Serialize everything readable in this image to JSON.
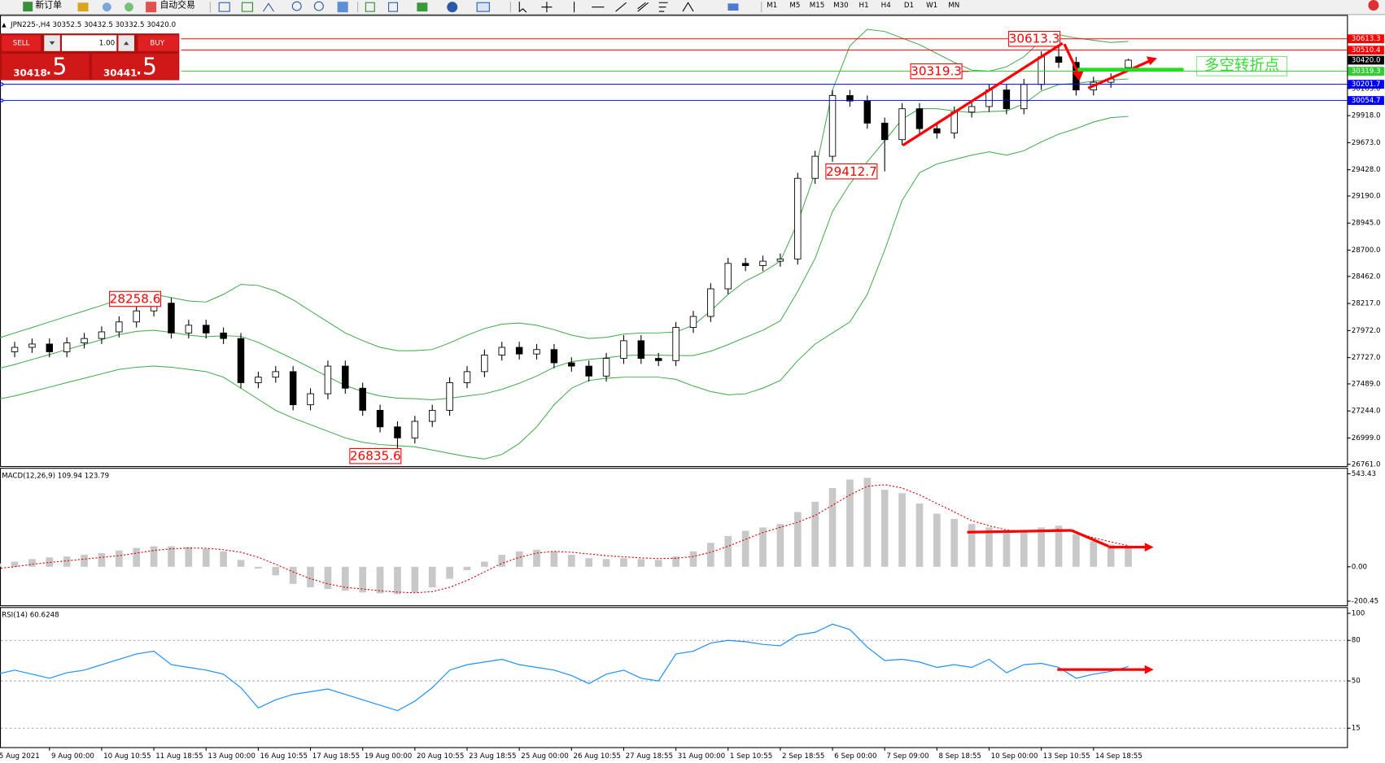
{
  "toolbar": {
    "new_order": "新订单",
    "auto_trading": "自动交易",
    "timeframes": [
      "M1",
      "M5",
      "M15",
      "M30",
      "H1",
      "H4",
      "D1",
      "W1",
      "MN"
    ]
  },
  "trade_panel": {
    "sell": "SELL",
    "buy": "BUY",
    "lots": "1.00",
    "bid_main": "30418",
    "bid_frac": ".5",
    "ask_main": "30441",
    "ask_frac": ".5"
  },
  "chart_data": [
    {
      "type": "candlestick",
      "title": "JPN225-,H4 30352.5 30432.5 30332.5 30420.0",
      "categories": [
        "5 Aug 2021",
        null,
        null,
        "9 Aug 00:00",
        null,
        null,
        "10 Aug 10:55",
        null,
        null,
        "11 Aug 18:55",
        null,
        null,
        "13 Aug 00:00",
        null,
        null,
        "16 Aug 10:55",
        null,
        null,
        "17 Aug 18:55",
        null,
        null,
        "19 Aug 00:00",
        null,
        null,
        "20 Aug 10:55",
        null,
        null,
        "23 Aug 18:55",
        null,
        null,
        "25 Aug 00:00",
        null,
        null,
        "26 Aug 10:55",
        null,
        null,
        "27 Aug 18:55",
        null,
        null,
        "31 Aug 00:00",
        null,
        null,
        "1 Sep 10:55",
        null,
        null,
        "2 Sep 18:55",
        null,
        null,
        "6 Sep 00:00",
        null,
        null,
        "7 Sep 09:00",
        null,
        null,
        "8 Sep 18:55",
        null,
        null,
        "10 Sep 00:00",
        null,
        null,
        "13 Sep 10:55",
        null,
        null,
        "14 Sep 18:55",
        null,
        null
      ],
      "open": [
        27750,
        27780,
        27820,
        27850,
        27780,
        27860,
        27900,
        27960,
        28050,
        28150,
        28220,
        27950,
        28020,
        27950,
        27900,
        27500,
        27550,
        27600,
        27300,
        27400,
        27650,
        27450,
        27250,
        27100,
        27000,
        27150,
        27250,
        27500,
        27600,
        27750,
        27820,
        27760,
        27800,
        27680,
        27650,
        27560,
        27720,
        27880,
        27720,
        27700,
        28000,
        28100,
        28350,
        28580,
        28560,
        28600,
        28620,
        29350,
        29550,
        30100,
        30050,
        29850,
        29700,
        29980,
        29800,
        29760,
        29950,
        30000,
        30150,
        29980,
        30200,
        30450,
        30400,
        30150,
        30220,
        30352.5
      ],
      "high": [
        27830,
        27870,
        27900,
        27900,
        27910,
        27950,
        28010,
        28100,
        28200,
        28258.6,
        28270,
        28070,
        28070,
        28000,
        27950,
        27600,
        27650,
        27650,
        27450,
        27700,
        27700,
        27500,
        27300,
        27150,
        27200,
        27300,
        27550,
        27650,
        27800,
        27870,
        27870,
        27850,
        27850,
        27730,
        27700,
        27770,
        27930,
        27930,
        27770,
        28050,
        28150,
        28400,
        28630,
        28630,
        28650,
        28670,
        29400,
        29600,
        30150,
        30150,
        30100,
        29900,
        30030,
        30030,
        29850,
        30000,
        30050,
        30200,
        30200,
        30250,
        30500,
        30613.3,
        30450,
        30270,
        30300,
        30432.5
      ],
      "low": [
        27700,
        27730,
        27770,
        27730,
        27730,
        27810,
        27850,
        27910,
        28000,
        28100,
        27900,
        27900,
        27900,
        27850,
        27450,
        27450,
        27500,
        27250,
        27250,
        27350,
        27400,
        27200,
        27050,
        26835.6,
        26950,
        27100,
        27200,
        27450,
        27550,
        27700,
        27710,
        27710,
        27630,
        27600,
        27510,
        27510,
        27670,
        27670,
        27650,
        27650,
        27950,
        28050,
        28300,
        28510,
        28510,
        28550,
        28570,
        29300,
        29500,
        30000,
        29800,
        29412.7,
        29650,
        29750,
        29710,
        29710,
        29900,
        29950,
        29930,
        29930,
        30150,
        30350,
        30100,
        30100,
        30170,
        30332.5
      ],
      "close": [
        27780,
        27820,
        27850,
        27780,
        27860,
        27900,
        27960,
        28050,
        28150,
        28220,
        27950,
        28020,
        27950,
        27900,
        27500,
        27550,
        27600,
        27300,
        27400,
        27650,
        27450,
        27250,
        27100,
        27000,
        27150,
        27250,
        27500,
        27600,
        27750,
        27820,
        27760,
        27800,
        27680,
        27650,
        27560,
        27720,
        27880,
        27720,
        27700,
        28000,
        28100,
        28350,
        28580,
        28560,
        28600,
        28620,
        29350,
        29550,
        30100,
        30050,
        29850,
        29700,
        29980,
        29800,
        29760,
        29950,
        30000,
        30150,
        29980,
        30200,
        30450,
        30400,
        30150,
        30220,
        30250,
        30420
      ],
      "up_color": "#ffffff",
      "down_color": "#000000",
      "wick_color": "#000000",
      "bands": {
        "color": "#3aa845",
        "upper": [
          27900,
          27950,
          28000,
          28050,
          28100,
          28150,
          28200,
          28250,
          28290,
          28300,
          28270,
          28240,
          28230,
          28300,
          28390,
          28380,
          28330,
          28250,
          28150,
          28050,
          27950,
          27880,
          27820,
          27790,
          27790,
          27800,
          27860,
          27930,
          27990,
          28030,
          28040,
          28020,
          27980,
          27930,
          27900,
          27910,
          27940,
          27950,
          27950,
          27960,
          28020,
          28150,
          28300,
          28420,
          28500,
          28600,
          28950,
          29400,
          30150,
          30550,
          30700,
          30680,
          30620,
          30560,
          30480,
          30400,
          30330,
          30320,
          30360,
          30450,
          30600,
          30650,
          30620,
          30600,
          30580,
          30590
        ],
        "middle": [
          27625,
          27665,
          27710,
          27755,
          27800,
          27845,
          27890,
          27935,
          27965,
          27975,
          27955,
          27930,
          27915,
          27925,
          27920,
          27865,
          27790,
          27715,
          27635,
          27555,
          27475,
          27420,
          27380,
          27360,
          27355,
          27345,
          27360,
          27380,
          27400,
          27440,
          27495,
          27560,
          27640,
          27690,
          27710,
          27725,
          27745,
          27750,
          27750,
          27745,
          27745,
          27785,
          27845,
          27910,
          27975,
          28060,
          28325,
          28625,
          29050,
          29300,
          29500,
          29690,
          29885,
          29980,
          29980,
          29960,
          29945,
          29955,
          29960,
          30025,
          30140,
          30200,
          30210,
          30230,
          30240,
          30250
        ],
        "lower": [
          27350,
          27380,
          27420,
          27460,
          27500,
          27540,
          27580,
          27620,
          27640,
          27650,
          27640,
          27620,
          27600,
          27550,
          27450,
          27350,
          27250,
          27180,
          27120,
          27060,
          27000,
          26960,
          26940,
          26930,
          26920,
          26890,
          26860,
          26830,
          26810,
          26850,
          26950,
          27100,
          27300,
          27450,
          27520,
          27540,
          27550,
          27550,
          27550,
          27530,
          27470,
          27420,
          27390,
          27400,
          27450,
          27520,
          27700,
          27850,
          27950,
          28050,
          28300,
          28700,
          29150,
          29400,
          29480,
          29520,
          29560,
          29590,
          29560,
          29600,
          29680,
          29750,
          29800,
          29860,
          29900,
          29910
        ]
      },
      "ylim": [
        26745,
        30821
      ],
      "yticks": [
        {
          "value": 26761,
          "label": "26761.0"
        },
        {
          "value": 26999,
          "label": "26999.0"
        },
        {
          "value": 27244,
          "label": "27244.0"
        },
        {
          "value": 27489,
          "label": "27489.0"
        },
        {
          "value": 27727,
          "label": "27727.0"
        },
        {
          "value": 27972,
          "label": "27972.0"
        },
        {
          "value": 28217,
          "label": "28217.0"
        },
        {
          "value": 28462,
          "label": "28462.0"
        },
        {
          "value": 28700,
          "label": "28700.0"
        },
        {
          "value": 28945,
          "label": "28945.0"
        },
        {
          "value": 29190,
          "label": "29190.0"
        },
        {
          "value": 29428,
          "label": "29428.0"
        },
        {
          "value": 29673,
          "label": "29673.0"
        },
        {
          "value": 29918,
          "label": "29918.0"
        },
        {
          "value": 30163,
          "label": "30163.0"
        }
      ],
      "levels": [
        {
          "price": 30613.3,
          "color": "#ff0000"
        },
        {
          "price": 30510.4,
          "color": "#ff0000"
        },
        {
          "price": {
            "value": 30420,
            "label": "30420.0"
          },
          "color": "#000000",
          "line": false
        },
        {
          "price": 30319.3,
          "color": "#32cd32"
        },
        {
          "price": 30201.7,
          "color": "#0000ff"
        },
        {
          "price": 30054.7,
          "color": "#0000ff"
        }
      ],
      "annotations": [
        30613.3,
        30319.3,
        29412.7,
        28258.6,
        26835.6
      ],
      "annotation_color": "#ff0000",
      "note": "多空转折点",
      "note_color": "#33dd33"
    },
    {
      "type": "macd",
      "title": "MACD(12,26,9) 109.94 123.79",
      "histogram": [
        20,
        30,
        45,
        55,
        60,
        70,
        80,
        95,
        110,
        120,
        120,
        115,
        105,
        90,
        40,
        -10,
        -50,
        -100,
        -120,
        -130,
        -140,
        -150,
        -155,
        -160,
        -150,
        -120,
        -70,
        -20,
        30,
        70,
        90,
        100,
        90,
        70,
        50,
        45,
        50,
        45,
        40,
        60,
        90,
        140,
        180,
        210,
        230,
        250,
        320,
        380,
        460,
        510,
        520,
        450,
        430,
        370,
        310,
        280,
        250,
        230,
        200,
        200,
        230,
        240,
        190,
        150,
        130,
        109.94
      ],
      "signal": [
        -10,
        0,
        15,
        25,
        35,
        45,
        55,
        65,
        80,
        95,
        105,
        110,
        108,
        100,
        85,
        55,
        15,
        -30,
        -70,
        -100,
        -120,
        -130,
        -140,
        -148,
        -152,
        -145,
        -120,
        -80,
        -30,
        20,
        55,
        80,
        90,
        85,
        75,
        65,
        58,
        52,
        48,
        50,
        60,
        85,
        120,
        160,
        200,
        230,
        260,
        300,
        360,
        420,
        470,
        480,
        460,
        420,
        370,
        320,
        270,
        240,
        215,
        205,
        210,
        220,
        200,
        170,
        145,
        123.79
      ],
      "hist_color": "#c8c8c8",
      "signal_color": "#e00000",
      "ylim": [
        -225,
        573
      ],
      "yticks": [
        543.43,
        {
          "value": 0,
          "label": "0.00"
        },
        -200.45
      ]
    },
    {
      "type": "line",
      "title": "RSI(14) 60.6248",
      "values": [
        55,
        58,
        55,
        52,
        56,
        58,
        62,
        66,
        70,
        72,
        62,
        60,
        58,
        55,
        45,
        30,
        36,
        40,
        42,
        44,
        40,
        36,
        32,
        28,
        35,
        45,
        58,
        62,
        64,
        66,
        62,
        60,
        58,
        54,
        48,
        55,
        58,
        52,
        50,
        70,
        72,
        78,
        80,
        79,
        77,
        76,
        84,
        86,
        92,
        88,
        75,
        65,
        66,
        64,
        60,
        62,
        60,
        66,
        56,
        62,
        63,
        60,
        52,
        55,
        57,
        60.6248
      ],
      "color": "#1e90ff",
      "ylim": [
        1,
        104
      ],
      "yticks": [
        100,
        80,
        50,
        15
      ],
      "levels_dashed": true
    }
  ]
}
